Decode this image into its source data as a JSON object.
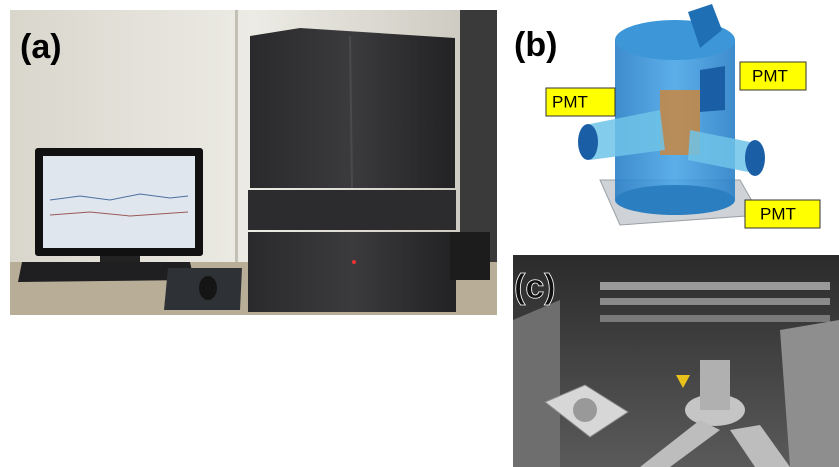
{
  "panels": [
    {
      "label": "(a)"
    },
    {
      "label": "(b)",
      "callouts": [
        "PMT",
        "PMT",
        "PMT"
      ]
    },
    {
      "label": "(c)"
    }
  ]
}
